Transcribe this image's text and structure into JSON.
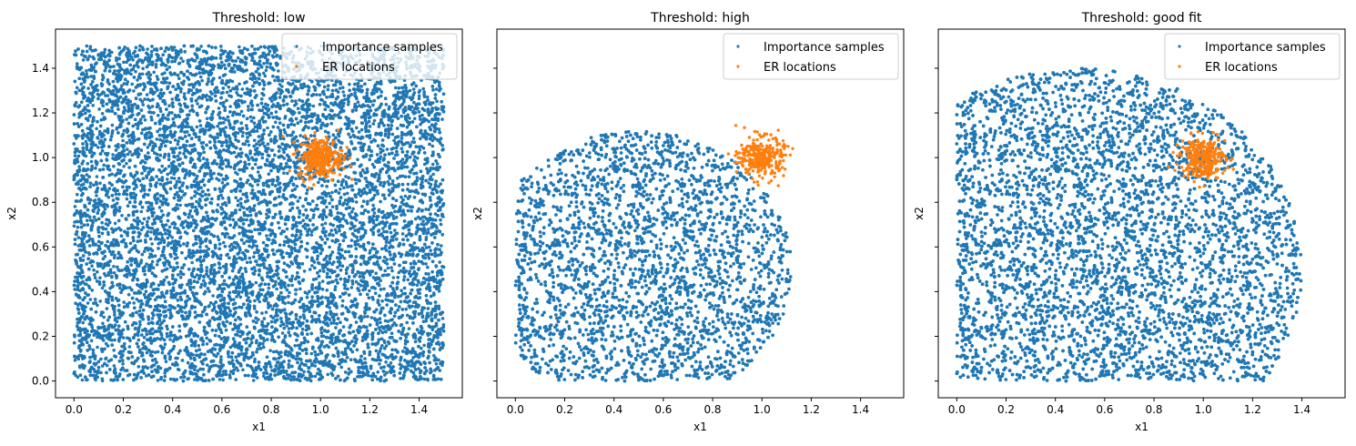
{
  "chart_data": [
    {
      "type": "scatter",
      "title": "Threshold: low",
      "xlabel": "x1",
      "ylabel": "x2",
      "xlim": [
        -0.075,
        1.575
      ],
      "ylim": [
        -0.075,
        1.575
      ],
      "xticks": [
        "0.0",
        "0.2",
        "0.4",
        "0.6",
        "0.8",
        "1.0",
        "1.2",
        "1.4"
      ],
      "yticks": [
        "0.0",
        "0.2",
        "0.4",
        "0.6",
        "0.8",
        "1.0",
        "1.2",
        "1.4"
      ],
      "show_ytick_labels": true,
      "legend_position": "top-right",
      "series": [
        {
          "name": "Importance samples",
          "color": "#1f77b4",
          "distribution": {
            "shape": "uniform-box",
            "x_range": [
              0,
              1.5
            ],
            "y_range": [
              0,
              1.5
            ]
          }
        },
        {
          "name": "ER locations",
          "color": "#ff7f0e",
          "distribution": {
            "shape": "gaussian-cluster",
            "center": [
              1.0,
              1.0
            ],
            "sd": 0.045
          }
        }
      ]
    },
    {
      "type": "scatter",
      "title": "Threshold: high",
      "xlabel": "x1",
      "ylabel": "x2",
      "xlim": [
        -0.075,
        1.575
      ],
      "ylim": [
        -0.075,
        1.575
      ],
      "xticks": [
        "0.0",
        "0.2",
        "0.4",
        "0.6",
        "0.8",
        "1.0",
        "1.2",
        "1.4"
      ],
      "yticks": [
        "0.0",
        "0.2",
        "0.4",
        "0.6",
        "0.8",
        "1.0",
        "1.2",
        "1.4"
      ],
      "show_ytick_labels": false,
      "legend_position": "top-right",
      "series": [
        {
          "name": "Importance samples",
          "color": "#1f77b4",
          "distribution": {
            "shape": "disk-clipped-to-box",
            "center": [
              0.5,
              0.5
            ],
            "radius": 0.62,
            "x_range": [
              0,
              1.5
            ],
            "y_range": [
              0,
              1.5
            ]
          }
        },
        {
          "name": "ER locations",
          "color": "#ff7f0e",
          "distribution": {
            "shape": "gaussian-cluster",
            "center": [
              1.0,
              1.0
            ],
            "sd": 0.045
          }
        }
      ]
    },
    {
      "type": "scatter",
      "title": "Threshold: good fit",
      "xlabel": "x1",
      "ylabel": "x2",
      "xlim": [
        -0.075,
        1.575
      ],
      "ylim": [
        -0.075,
        1.575
      ],
      "xticks": [
        "0.0",
        "0.2",
        "0.4",
        "0.6",
        "0.8",
        "1.0",
        "1.2",
        "1.4"
      ],
      "yticks": [
        "0.0",
        "0.2",
        "0.4",
        "0.6",
        "0.8",
        "1.0",
        "1.2",
        "1.4"
      ],
      "show_ytick_labels": false,
      "legend_position": "top-right",
      "series": [
        {
          "name": "Importance samples",
          "color": "#1f77b4",
          "distribution": {
            "shape": "disk-clipped-to-box",
            "center": [
              0.5,
              0.5
            ],
            "radius": 0.9,
            "x_range": [
              0,
              1.5
            ],
            "y_range": [
              0,
              1.5
            ]
          }
        },
        {
          "name": "ER locations",
          "color": "#ff7f0e",
          "distribution": {
            "shape": "gaussian-cluster",
            "center": [
              1.0,
              1.0
            ],
            "sd": 0.045
          }
        }
      ]
    }
  ]
}
